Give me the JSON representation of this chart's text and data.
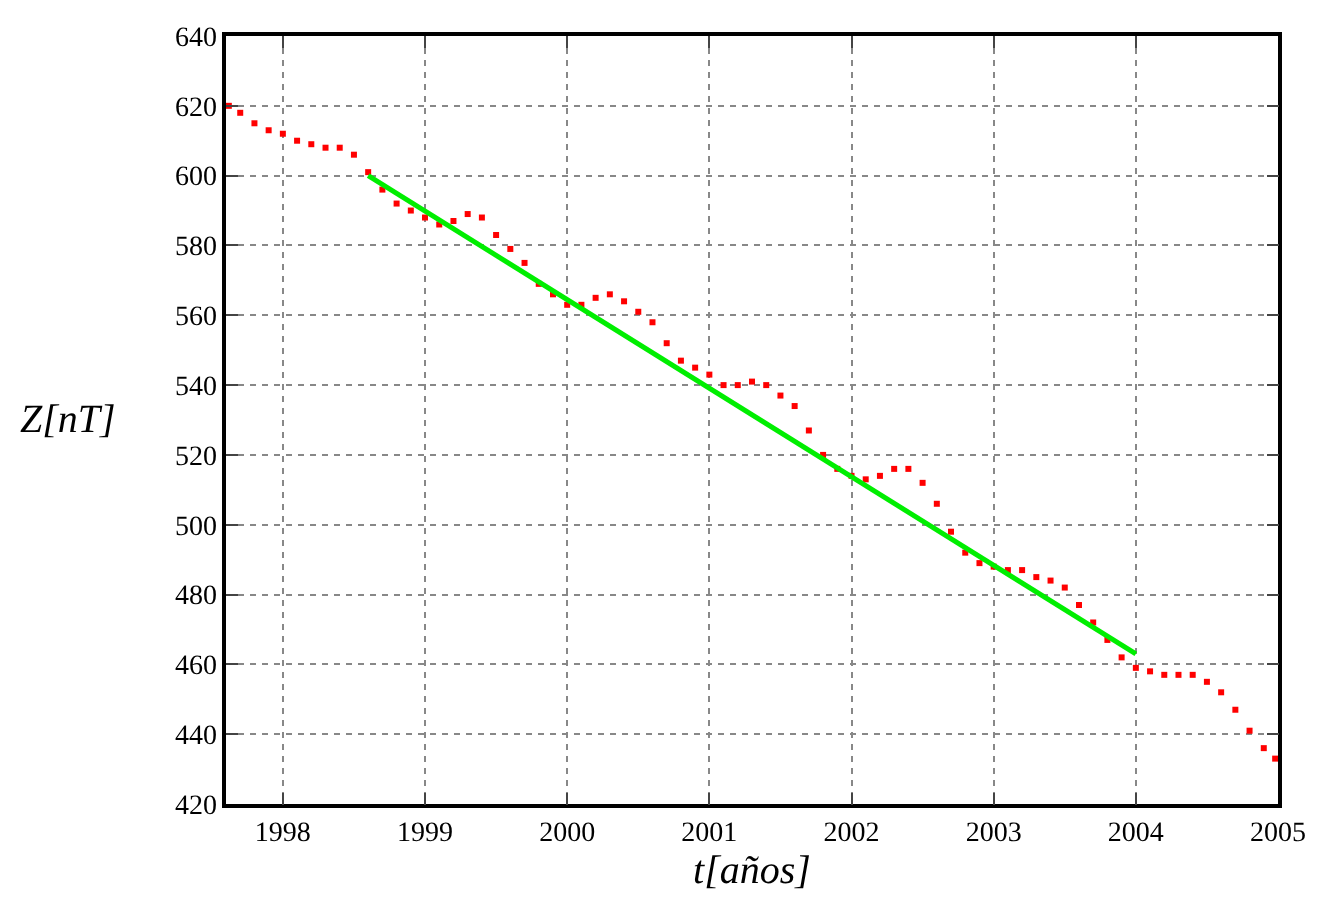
{
  "chart_data": {
    "type": "scatter",
    "xlabel": "t[años]",
    "ylabel": "Z[nT]",
    "xlim": [
      1997.6,
      2005
    ],
    "xticks": [
      1998,
      1999,
      2000,
      2001,
      2002,
      2003,
      2004,
      2005
    ],
    "ylim": [
      420,
      640
    ],
    "yticks": [
      420,
      440,
      460,
      480,
      500,
      520,
      540,
      560,
      580,
      600,
      620,
      640
    ],
    "grid": true,
    "marker": "square",
    "series": [
      {
        "color": "#ff0000",
        "x": [
          1997.62,
          1997.7,
          1997.8,
          1997.9,
          1998.0,
          1998.1,
          1998.2,
          1998.3,
          1998.4,
          1998.5,
          1998.6,
          1998.7,
          1998.8,
          1998.9,
          1999.0,
          1999.1,
          1999.2,
          1999.3,
          1999.4,
          1999.5,
          1999.6,
          1999.7,
          1999.8,
          1999.9,
          2000.0,
          2000.1,
          2000.2,
          2000.3,
          2000.4,
          2000.5,
          2000.6,
          2000.7,
          2000.8,
          2000.9,
          2001.0,
          2001.1,
          2001.2,
          2001.3,
          2001.4,
          2001.5,
          2001.6,
          2001.7,
          2001.8,
          2001.9,
          2002.0,
          2002.1,
          2002.2,
          2002.3,
          2002.4,
          2002.5,
          2002.6,
          2002.7,
          2002.8,
          2002.9,
          2003.0,
          2003.1,
          2003.2,
          2003.3,
          2003.4,
          2003.5,
          2003.6,
          2003.7,
          2003.8,
          2003.9,
          2004.0,
          2004.1,
          2004.2,
          2004.3,
          2004.4,
          2004.5,
          2004.6,
          2004.7,
          2004.8,
          2004.9,
          2004.98
        ],
        "values": [
          620,
          618,
          615,
          613,
          612,
          610,
          609,
          608,
          608,
          606,
          601,
          596,
          592,
          590,
          588,
          586,
          587,
          589,
          588,
          583,
          579,
          575,
          569,
          566,
          563,
          563,
          565,
          566,
          564,
          561,
          558,
          552,
          547,
          545,
          543,
          540,
          540,
          541,
          540,
          537,
          534,
          527,
          520,
          516,
          514,
          513,
          514,
          516,
          516,
          512,
          506,
          498,
          492,
          489,
          488,
          487,
          487,
          485,
          484,
          482,
          477,
          472,
          467,
          462,
          459,
          458,
          457,
          457,
          457,
          455,
          452,
          447,
          441,
          436,
          433
        ]
      },
      {
        "type": "line",
        "color": "#00ee00",
        "marker": "none",
        "x": [
          1998.6,
          2004.0
        ],
        "values": [
          600,
          463
        ]
      }
    ]
  }
}
